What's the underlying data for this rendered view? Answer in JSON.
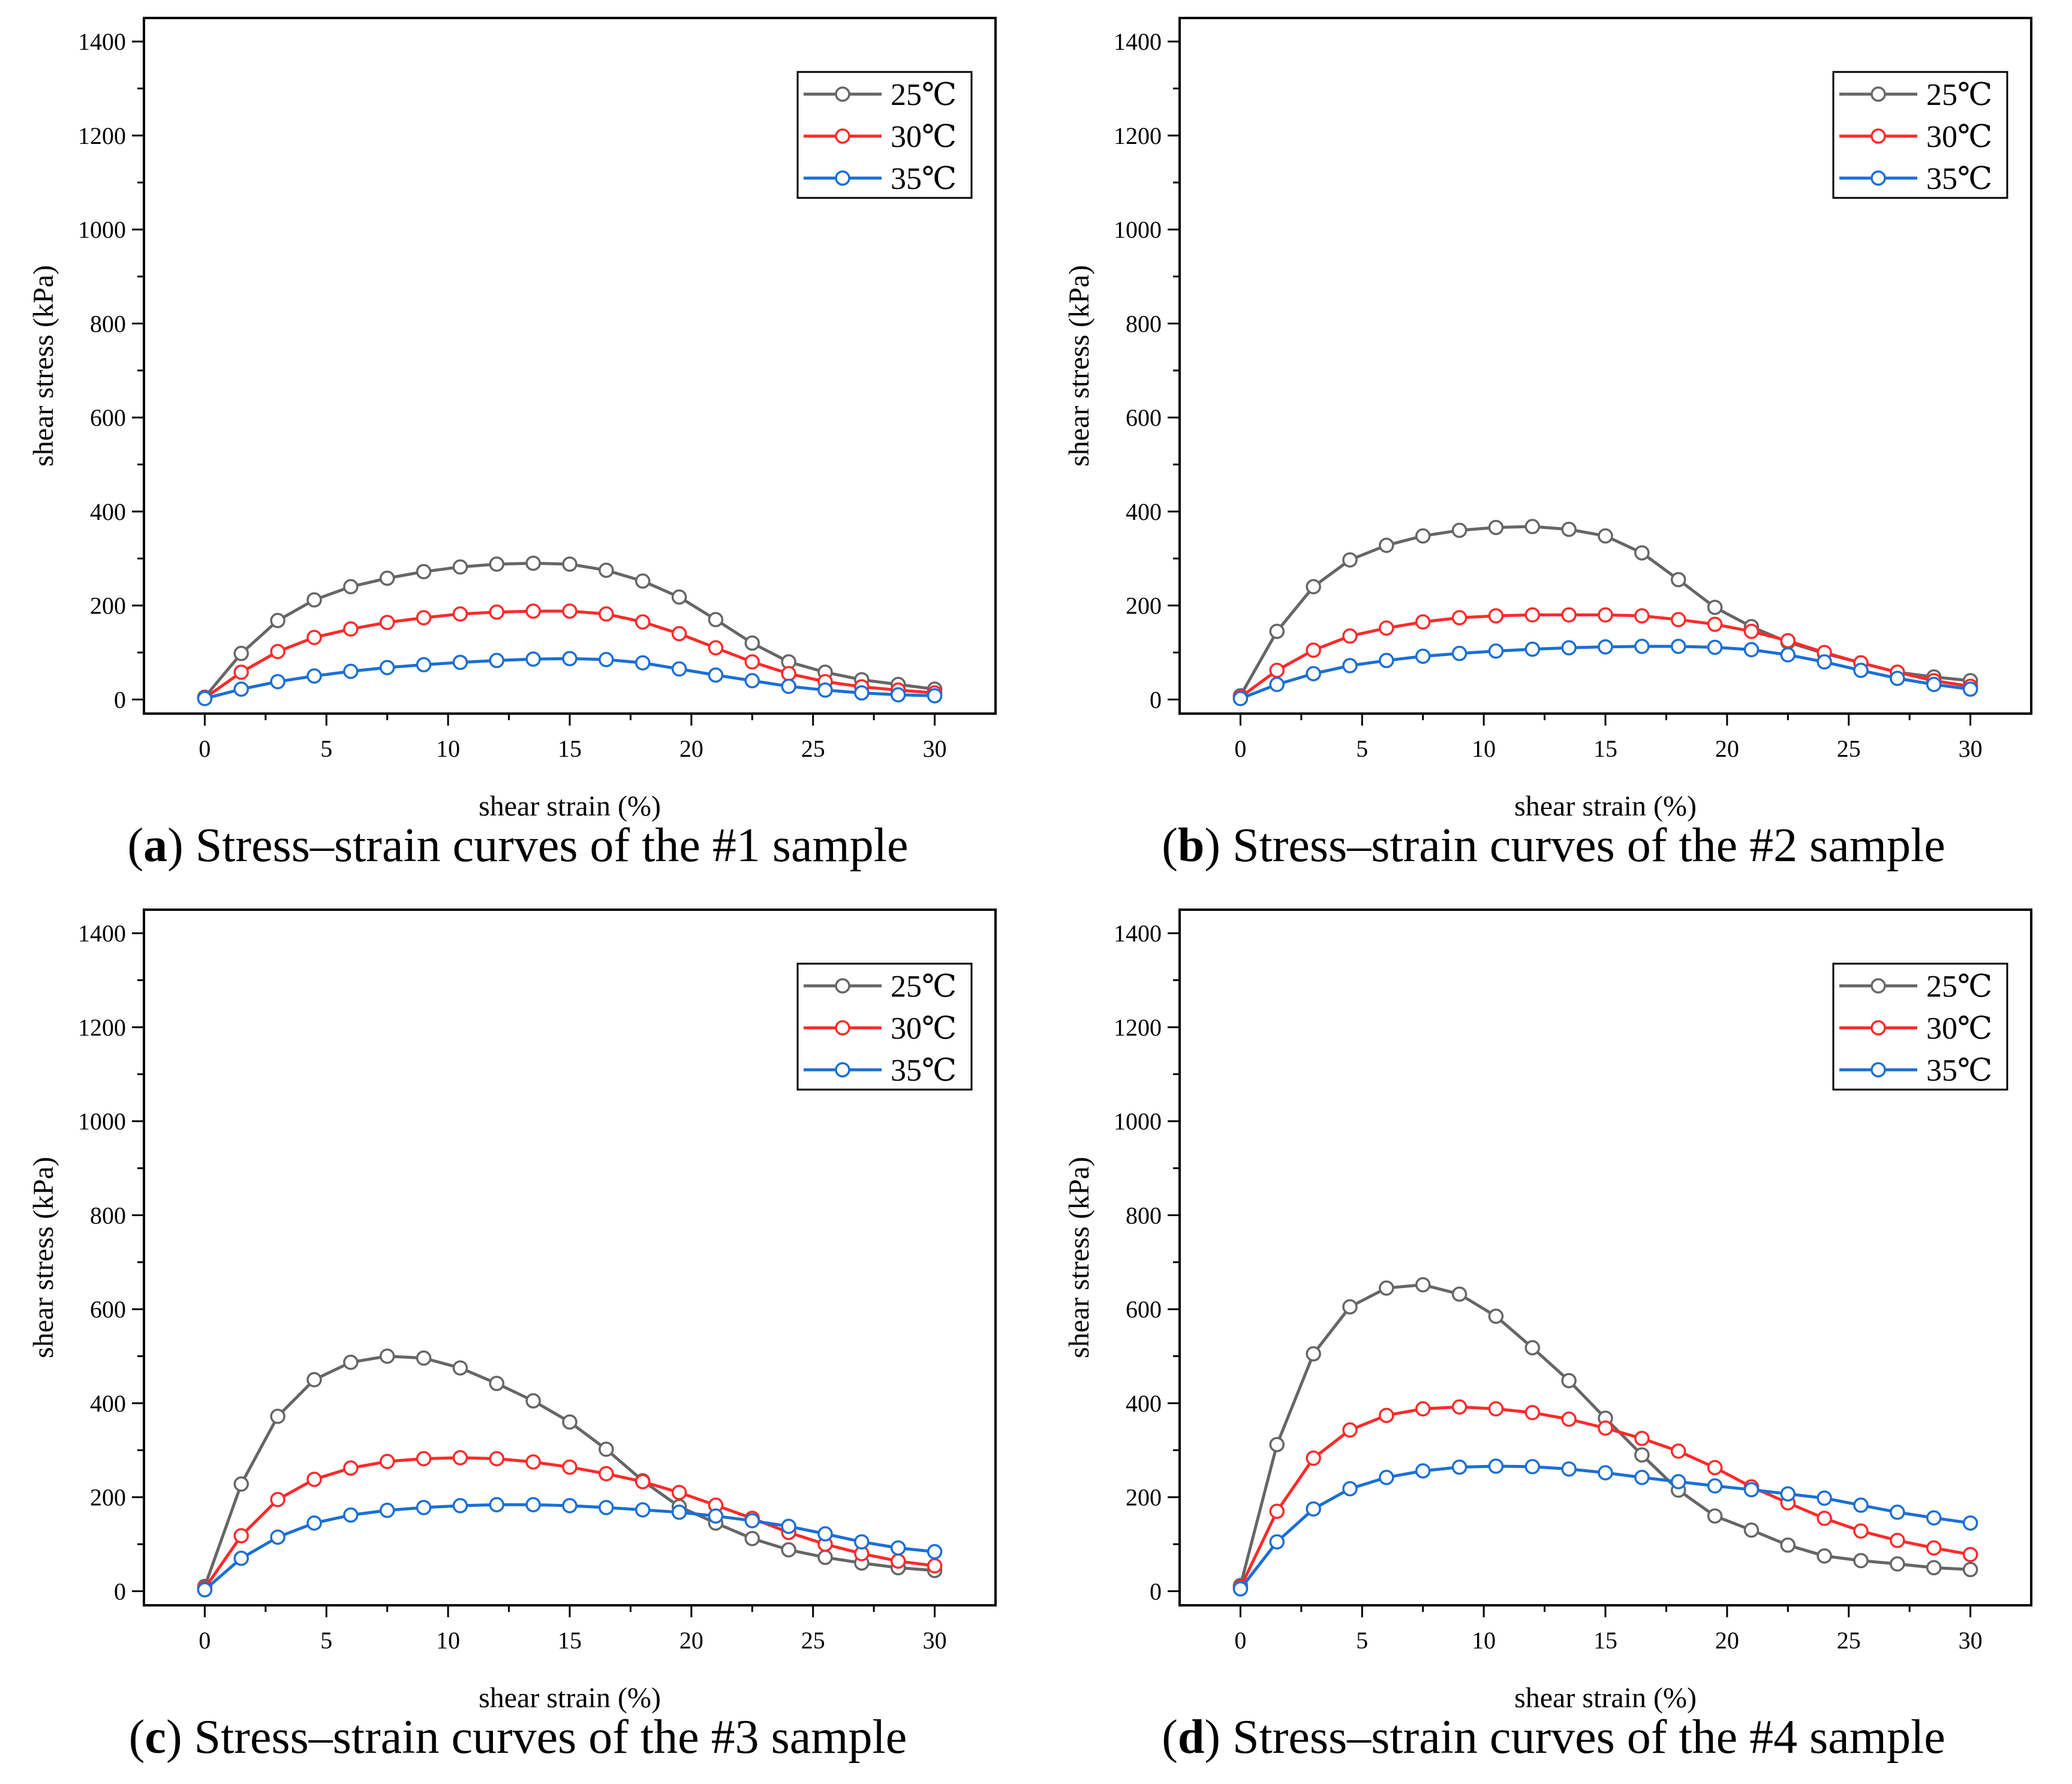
{
  "figure_colors": {
    "axis": "#000000",
    "marker_fill": "#ffffff"
  },
  "legend_labels": [
    "25℃",
    "30℃",
    "35℃"
  ],
  "series_colors": [
    "#666666",
    "#ff2a2a",
    "#1a6fd6"
  ],
  "chart_data": [
    {
      "panel": "a",
      "type": "line",
      "caption": {
        "letter": "a",
        "text": "Stress–strain curves of the #1 sample"
      },
      "xlabel": "shear strain (%)",
      "ylabel": "shear stress (kPa)",
      "xlim": [
        -2.5,
        32.5
      ],
      "ylim": [
        -30,
        1450
      ],
      "xticks": [
        0,
        5,
        10,
        15,
        20,
        25,
        30
      ],
      "yticks": [
        0,
        200,
        400,
        600,
        800,
        1000,
        1200,
        1400
      ],
      "legend_position": "top-right",
      "x": [
        0,
        1.5,
        3,
        4.5,
        6,
        7.5,
        9,
        10.5,
        12,
        13.5,
        15,
        16.5,
        18,
        19.5,
        21,
        22.5,
        24,
        25.5,
        27,
        28.5,
        30
      ],
      "series": [
        {
          "name": "25℃",
          "color": "#666666",
          "values": [
            5,
            98,
            168,
            212,
            240,
            258,
            272,
            282,
            288,
            290,
            288,
            275,
            252,
            218,
            170,
            120,
            80,
            58,
            42,
            32,
            22
          ]
        },
        {
          "name": "30℃",
          "color": "#ff2a2a",
          "values": [
            3,
            58,
            102,
            132,
            150,
            164,
            174,
            182,
            186,
            188,
            188,
            182,
            165,
            140,
            110,
            80,
            55,
            38,
            27,
            20,
            14
          ]
        },
        {
          "name": "35℃",
          "color": "#1a6fd6",
          "values": [
            2,
            22,
            38,
            50,
            60,
            68,
            74,
            79,
            83,
            86,
            87,
            85,
            78,
            65,
            52,
            40,
            28,
            20,
            14,
            10,
            8
          ]
        }
      ]
    },
    {
      "panel": "b",
      "type": "line",
      "caption": {
        "letter": "b",
        "text": "Stress–strain curves of the #2 sample"
      },
      "xlabel": "shear strain (%)",
      "ylabel": "shear stress (kPa)",
      "xlim": [
        -2.5,
        32.5
      ],
      "ylim": [
        -30,
        1450
      ],
      "xticks": [
        0,
        5,
        10,
        15,
        20,
        25,
        30
      ],
      "yticks": [
        0,
        200,
        400,
        600,
        800,
        1000,
        1200,
        1400
      ],
      "legend_position": "top-right",
      "x": [
        0,
        1.5,
        3,
        4.5,
        6,
        7.5,
        9,
        10.5,
        12,
        13.5,
        15,
        16.5,
        18,
        19.5,
        21,
        22.5,
        24,
        25.5,
        27,
        28.5,
        30
      ],
      "series": [
        {
          "name": "25℃",
          "color": "#666666",
          "values": [
            8,
            145,
            240,
            297,
            328,
            348,
            360,
            366,
            368,
            362,
            348,
            312,
            255,
            196,
            155,
            122,
            98,
            78,
            58,
            48,
            40
          ]
        },
        {
          "name": "30℃",
          "color": "#ff2a2a",
          "values": [
            5,
            62,
            105,
            135,
            152,
            165,
            174,
            178,
            180,
            180,
            180,
            178,
            170,
            160,
            145,
            125,
            100,
            78,
            58,
            40,
            28
          ]
        },
        {
          "name": "35℃",
          "color": "#1a6fd6",
          "values": [
            2,
            32,
            55,
            72,
            83,
            92,
            98,
            103,
            107,
            110,
            112,
            113,
            113,
            111,
            106,
            95,
            80,
            62,
            45,
            32,
            22
          ]
        }
      ]
    },
    {
      "panel": "c",
      "type": "line",
      "caption": {
        "letter": "c",
        "text": "Stress–strain curves of the #3 sample"
      },
      "xlabel": "shear strain (%)",
      "ylabel": "shear stress (kPa)",
      "xlim": [
        -2.5,
        32.5
      ],
      "ylim": [
        -30,
        1450
      ],
      "xticks": [
        0,
        5,
        10,
        15,
        20,
        25,
        30
      ],
      "yticks": [
        0,
        200,
        400,
        600,
        800,
        1000,
        1200,
        1400
      ],
      "legend_position": "top-right",
      "x": [
        0,
        1.5,
        3,
        4.5,
        6,
        7.5,
        9,
        10.5,
        12,
        13.5,
        15,
        16.5,
        18,
        19.5,
        21,
        22.5,
        24,
        25.5,
        27,
        28.5,
        30
      ],
      "series": [
        {
          "name": "25℃",
          "color": "#666666",
          "values": [
            10,
            228,
            372,
            450,
            487,
            500,
            496,
            475,
            442,
            405,
            360,
            302,
            235,
            180,
            145,
            112,
            88,
            72,
            60,
            50,
            44
          ]
        },
        {
          "name": "30℃",
          "color": "#ff2a2a",
          "values": [
            6,
            118,
            195,
            238,
            262,
            276,
            282,
            284,
            282,
            275,
            264,
            250,
            233,
            210,
            183,
            155,
            125,
            100,
            80,
            64,
            54
          ]
        },
        {
          "name": "35℃",
          "color": "#1a6fd6",
          "values": [
            3,
            70,
            115,
            145,
            162,
            172,
            178,
            182,
            184,
            184,
            182,
            178,
            173,
            168,
            160,
            150,
            138,
            122,
            105,
            92,
            84
          ]
        }
      ]
    },
    {
      "panel": "d",
      "type": "line",
      "caption": {
        "letter": "d",
        "text": "Stress–strain curves of the #4 sample"
      },
      "xlabel": "shear strain (%)",
      "ylabel": "shear stress (kPa)",
      "xlim": [
        -2.5,
        32.5
      ],
      "ylim": [
        -30,
        1450
      ],
      "xticks": [
        0,
        5,
        10,
        15,
        20,
        25,
        30
      ],
      "yticks": [
        0,
        200,
        400,
        600,
        800,
        1000,
        1200,
        1400
      ],
      "legend_position": "top-right",
      "x": [
        0,
        1.5,
        3,
        4.5,
        6,
        7.5,
        9,
        10.5,
        12,
        13.5,
        15,
        16.5,
        18,
        19.5,
        21,
        22.5,
        24,
        25.5,
        27,
        28.5,
        30
      ],
      "series": [
        {
          "name": "25℃",
          "color": "#666666",
          "values": [
            12,
            312,
            505,
            605,
            645,
            652,
            632,
            585,
            518,
            448,
            368,
            290,
            215,
            160,
            130,
            98,
            75,
            65,
            58,
            50,
            46
          ]
        },
        {
          "name": "30℃",
          "color": "#ff2a2a",
          "values": [
            8,
            170,
            283,
            343,
            374,
            388,
            392,
            388,
            380,
            366,
            347,
            325,
            298,
            263,
            222,
            188,
            155,
            128,
            108,
            92,
            78
          ]
        },
        {
          "name": "35℃",
          "color": "#1a6fd6",
          "values": [
            5,
            105,
            175,
            218,
            242,
            256,
            264,
            266,
            265,
            260,
            252,
            242,
            233,
            224,
            216,
            207,
            198,
            183,
            168,
            156,
            145
          ]
        }
      ]
    }
  ]
}
